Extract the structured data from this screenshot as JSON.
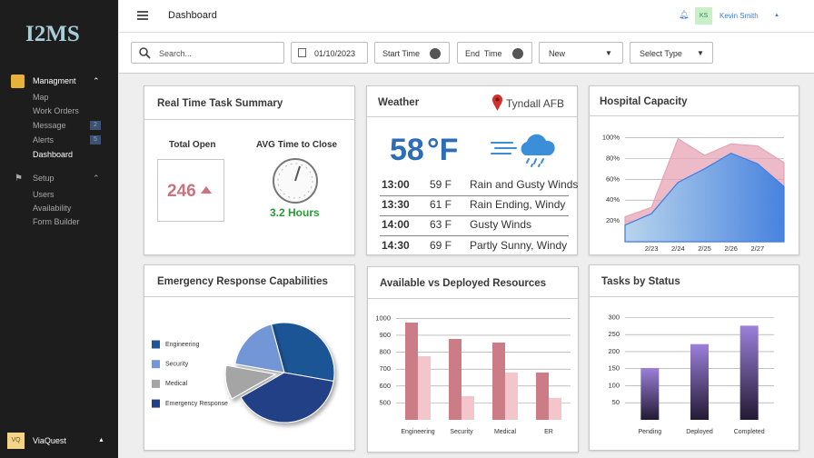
{
  "sidebar": {
    "logo": "I2MS",
    "sections": [
      {
        "title": "Managment",
        "items": [
          {
            "label": "Map"
          },
          {
            "label": "Work Orders"
          },
          {
            "label": "Message",
            "badge": 2
          },
          {
            "label": "Alerts",
            "badge": 5
          },
          {
            "label": "Dashboard"
          }
        ]
      },
      {
        "title": "Setup",
        "items": [
          {
            "label": "Users"
          },
          {
            "label": "Availability"
          },
          {
            "label": "Form Builder"
          }
        ]
      }
    ],
    "account": {
      "initials": "VQ",
      "name": "ViaQuest"
    }
  },
  "topbar": {
    "title": "Dashboard",
    "user_initials": "KS",
    "user_name": "Kevin Smith"
  },
  "filters": {
    "search": "Search...",
    "date": "01/10/2023",
    "start_time": "Start Time",
    "end_time": "End  Time",
    "status": "New",
    "type": "Select Type"
  },
  "task_summary": {
    "title": "Real Time Task Summary",
    "total_open_label": "Total Open",
    "total_open": 246,
    "avg_label": "AVG Time to Close",
    "avg_time": "3.2 Hours"
  },
  "weather": {
    "title": "Weather",
    "location": "Tyndall AFB",
    "temperature": "58",
    "unit": "°F",
    "forecast": [
      {
        "time": "13:00",
        "temp": "59 F",
        "conditions": "Rain and Gusty Winds"
      },
      {
        "time": "13:30",
        "temp": "61 F",
        "conditions": "Rain Ending, Windy"
      },
      {
        "time": "14:00",
        "temp": "63 F",
        "conditions": "Gusty Winds"
      },
      {
        "time": "14:30",
        "temp": "69 F",
        "conditions": "Partly Sunny, Windy"
      }
    ]
  },
  "chart_data": [
    {
      "type": "area",
      "title": "Hospital Capacity",
      "categories": [
        null,
        "2/23",
        "2/24",
        "2/25",
        "2/26",
        "2/27",
        null
      ],
      "series": [
        {
          "color": "#e7a3b6",
          "values": [
            24,
            33,
            99,
            83,
            94,
            92,
            76
          ]
        },
        {
          "color": "#3f7fe0",
          "values": [
            16,
            27,
            57,
            70,
            85,
            75,
            53
          ]
        }
      ],
      "ylim": [
        0,
        110
      ],
      "yticks": [
        {
          "value": 20,
          "label": "20%"
        },
        {
          "value": 40,
          "label": "40%"
        },
        {
          "value": 60,
          "label": "60%"
        },
        {
          "value": 80,
          "label": "80%"
        },
        {
          "value": 100,
          "label": "100%"
        }
      ],
      "grid": true
    },
    {
      "type": "pie",
      "title": "Emergency Response Capabilities",
      "categories": [
        "Engineering",
        "Security",
        "Medical",
        "Emergency Response"
      ],
      "values": [
        32,
        18,
        11,
        39
      ],
      "colors": [
        "#1f5496",
        "#7396d6",
        "#a5a5a5",
        "#203f86"
      ],
      "exploded": "Medical",
      "legend": "left"
    },
    {
      "type": "bar",
      "title": "Available vs Deployed Resources",
      "categories": [
        "Engineering",
        "Security",
        "Medical",
        "ER"
      ],
      "series": [
        {
          "color": "#cc7c87",
          "values": [
            975,
            878,
            857,
            680
          ]
        },
        {
          "color": "#f4c6cb",
          "values": [
            776,
            540,
            680,
            530
          ]
        }
      ],
      "ylim": [
        400,
        1050
      ],
      "yticks": [
        500,
        600,
        700,
        800,
        900,
        1000
      ],
      "grid": true
    },
    {
      "type": "bar",
      "title": "Tasks by Status",
      "categories": [
        "Pending",
        "Deployed",
        "Completed"
      ],
      "values": [
        152,
        222,
        276
      ],
      "color": "#9c80db",
      "ylim": [
        0,
        325
      ],
      "yticks": [
        50,
        100,
        150,
        200,
        250,
        300
      ],
      "grid": true
    }
  ]
}
